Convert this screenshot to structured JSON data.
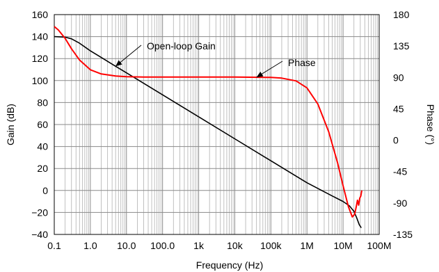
{
  "chart_data": {
    "type": "line",
    "xlabel": "Frequency (Hz)",
    "ylabel": "Gain (dB)",
    "y2label": "Phase (°)",
    "xscale": "log",
    "xlim": [
      0.1,
      100000000
    ],
    "ylim": [
      -40,
      160
    ],
    "y2lim": [
      -135,
      180
    ],
    "grid": true,
    "x_ticks": [
      {
        "value": 0.1,
        "label": "0.1"
      },
      {
        "value": 1,
        "label": "1.0"
      },
      {
        "value": 10,
        "label": "10.0"
      },
      {
        "value": 100,
        "label": "100.0"
      },
      {
        "value": 1000,
        "label": "1k"
      },
      {
        "value": 10000,
        "label": "10k"
      },
      {
        "value": 100000,
        "label": "100k"
      },
      {
        "value": 1000000,
        "label": "1M"
      },
      {
        "value": 10000000,
        "label": "10M"
      },
      {
        "value": 100000000,
        "label": "100M"
      }
    ],
    "y_ticks": [
      {
        "value": 160,
        "label": "160"
      },
      {
        "value": 140,
        "label": "140"
      },
      {
        "value": 120,
        "label": "120"
      },
      {
        "value": 100,
        "label": "100"
      },
      {
        "value": 80,
        "label": "80"
      },
      {
        "value": 60,
        "label": "60"
      },
      {
        "value": 40,
        "label": "40"
      },
      {
        "value": 20,
        "label": "20"
      },
      {
        "value": 0,
        "label": "0"
      },
      {
        "value": -20,
        "label": "−20"
      },
      {
        "value": -40,
        "label": "−40"
      }
    ],
    "y2_ticks": [
      {
        "value": 180,
        "label": "180"
      },
      {
        "value": 135,
        "label": "135"
      },
      {
        "value": 90,
        "label": "90"
      },
      {
        "value": 45,
        "label": "45"
      },
      {
        "value": 0,
        "label": "0"
      },
      {
        "value": -45,
        "label": "-45"
      },
      {
        "value": -90,
        "label": "-90"
      },
      {
        "value": -135,
        "label": "-135"
      }
    ],
    "series": [
      {
        "name": "Open-loop Gain",
        "axis": "left",
        "color": "#000000",
        "x": [
          0.1,
          0.2,
          0.3,
          0.5,
          1,
          2,
          5,
          10,
          20,
          100,
          1000,
          10000,
          100000,
          1000000,
          5000000,
          10000000,
          15000000,
          20000000,
          24000000,
          28000000,
          32000000
        ],
        "y": [
          140,
          139.5,
          138,
          134,
          127,
          121,
          113,
          107,
          101,
          87,
          67,
          47,
          27,
          7,
          -5,
          -10,
          -14,
          -19,
          -25,
          -31,
          -34
        ]
      },
      {
        "name": "Phase",
        "axis": "right",
        "color": "#ff0000",
        "x": [
          0.1,
          0.13,
          0.2,
          0.3,
          0.5,
          1,
          2,
          5,
          10,
          30,
          100,
          1000,
          10000,
          100000,
          200000,
          500000,
          1000000,
          2000000,
          4000000,
          7000000,
          10000000,
          14000000,
          18000000,
          21000000,
          23000000,
          25000000,
          27000000,
          29000000,
          31000000,
          33000000
        ],
        "y": [
          163,
          158,
          146,
          131,
          115,
          101,
          95,
          92,
          91,
          90.5,
          90.5,
          90.5,
          90.5,
          90,
          89,
          85,
          75,
          52,
          12,
          -32,
          -65,
          -95,
          -110,
          -106,
          -96,
          -86,
          -93,
          -83,
          -80,
          -72
        ]
      }
    ],
    "annotations": [
      {
        "text": "Open-loop Gain",
        "series": "Open-loop Gain",
        "points_to_x": 5
      },
      {
        "text": "Phase",
        "series": "Phase",
        "points_to_x": 40000
      }
    ]
  }
}
